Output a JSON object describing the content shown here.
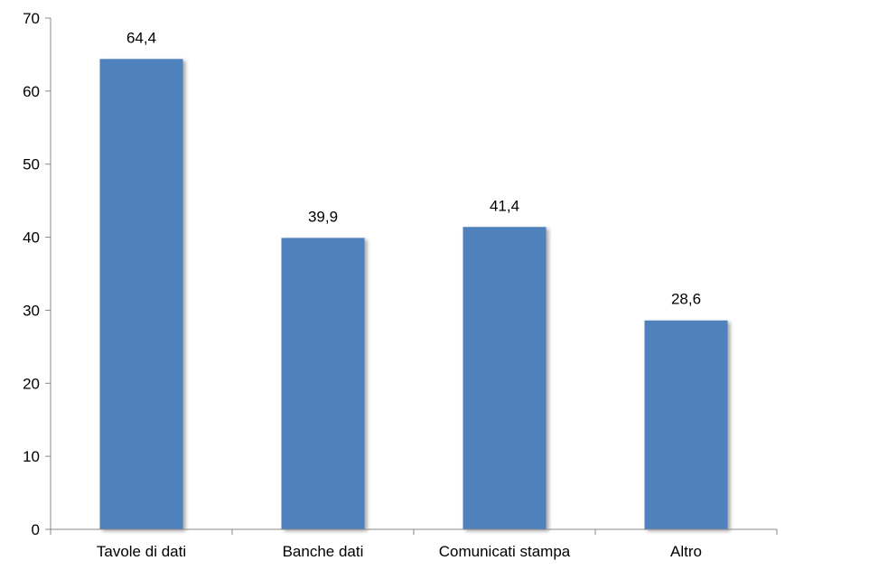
{
  "chart_data": {
    "type": "bar",
    "title": "",
    "xlabel": "",
    "ylabel": "",
    "categories": [
      "Tavole di dati",
      "Banche dati",
      "Comunicati stampa",
      "Altro"
    ],
    "values": [
      64.4,
      39.9,
      41.4,
      28.6
    ],
    "data_labels": [
      "64,4",
      "39,9",
      "41,4",
      "28,6"
    ],
    "ylim": [
      0,
      70
    ],
    "yticks": [
      0,
      10,
      20,
      30,
      40,
      50,
      60,
      70
    ],
    "grid": false,
    "legend": "none",
    "bar_color": "#4F81BD",
    "axis_color": "#888888"
  }
}
